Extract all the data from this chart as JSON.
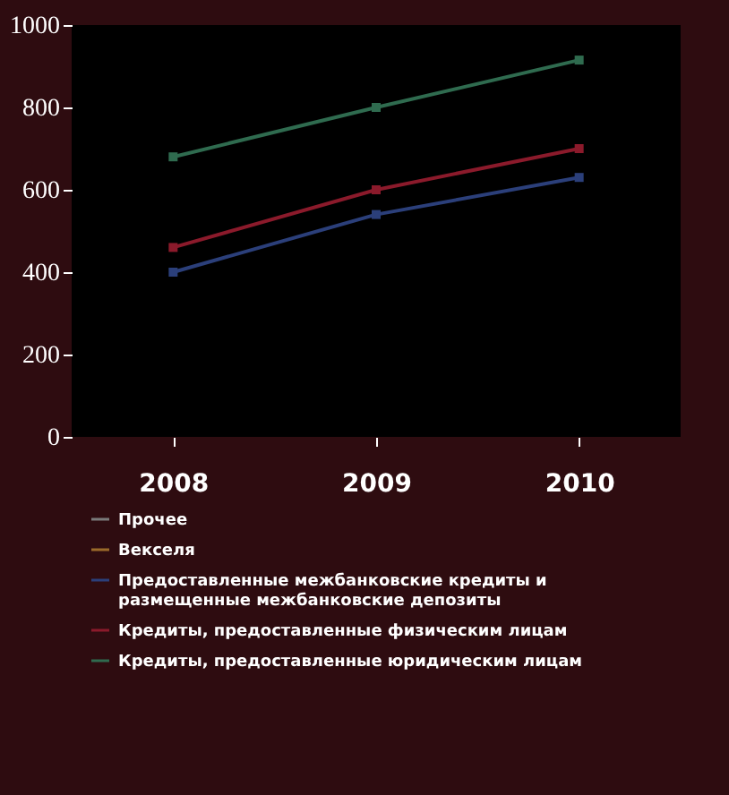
{
  "chart_data": {
    "type": "line",
    "categories": [
      "2008",
      "2009",
      "2010"
    ],
    "series": [
      {
        "name": "Прочее",
        "color": "#7a7a7a",
        "values": [
          null,
          null,
          null
        ]
      },
      {
        "name": "Векселя",
        "color": "#9a6a2a",
        "values": [
          null,
          null,
          null
        ]
      },
      {
        "name": "Предоставленные межбанковские кредиты и размещенные межбанковские депозиты",
        "color": "#2b3f7a",
        "values": [
          400,
          540,
          630
        ]
      },
      {
        "name": "Кредиты, предоставленные физическим лицам",
        "color": "#8b1a2b",
        "values": [
          460,
          600,
          700
        ]
      },
      {
        "name": "Кредиты, предоставленные юридическим лицам",
        "color": "#2f6b4f",
        "values": [
          680,
          800,
          915
        ]
      }
    ],
    "ylim": [
      0,
      1000
    ],
    "yticks": [
      0,
      200,
      400,
      600,
      800,
      1000
    ],
    "legend": "bottom",
    "marker": "square"
  }
}
